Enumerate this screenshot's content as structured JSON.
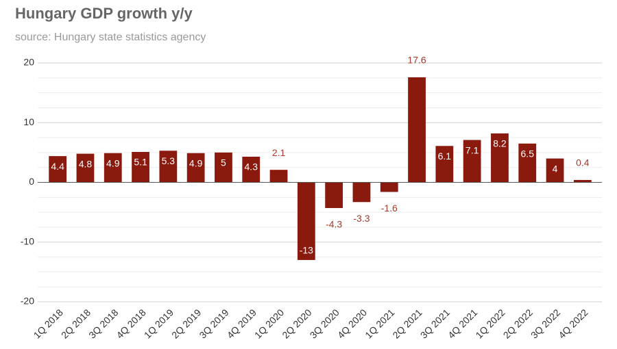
{
  "chart_data": {
    "type": "bar",
    "title": "Hungary GDP growth y/y",
    "subtitle": "source: Hungary state statistics agency",
    "categories": [
      "1Q 2018",
      "2Q 2018",
      "3Q 2018",
      "4Q 2018",
      "1Q 2019",
      "2Q 2019",
      "3Q 2019",
      "4Q 2019",
      "1Q 2020",
      "2Q 2020",
      "3Q 2020",
      "4Q 2020",
      "1Q 2021",
      "2Q 2021",
      "3Q 2021",
      "4Q 2021",
      "1Q 2022",
      "2Q 2022",
      "3Q 2022",
      "4Q 2022"
    ],
    "values": [
      4.4,
      4.8,
      4.9,
      5.1,
      5.3,
      4.9,
      5,
      4.3,
      2.1,
      -13,
      -4.3,
      -3.3,
      -1.6,
      17.6,
      6.1,
      7.1,
      8.2,
      6.5,
      4,
      0.4
    ],
    "color": "#8b1a0e",
    "ylim": [
      -20,
      20
    ],
    "yticks": [
      -20,
      -10,
      0,
      10,
      20
    ],
    "grid": true
  }
}
